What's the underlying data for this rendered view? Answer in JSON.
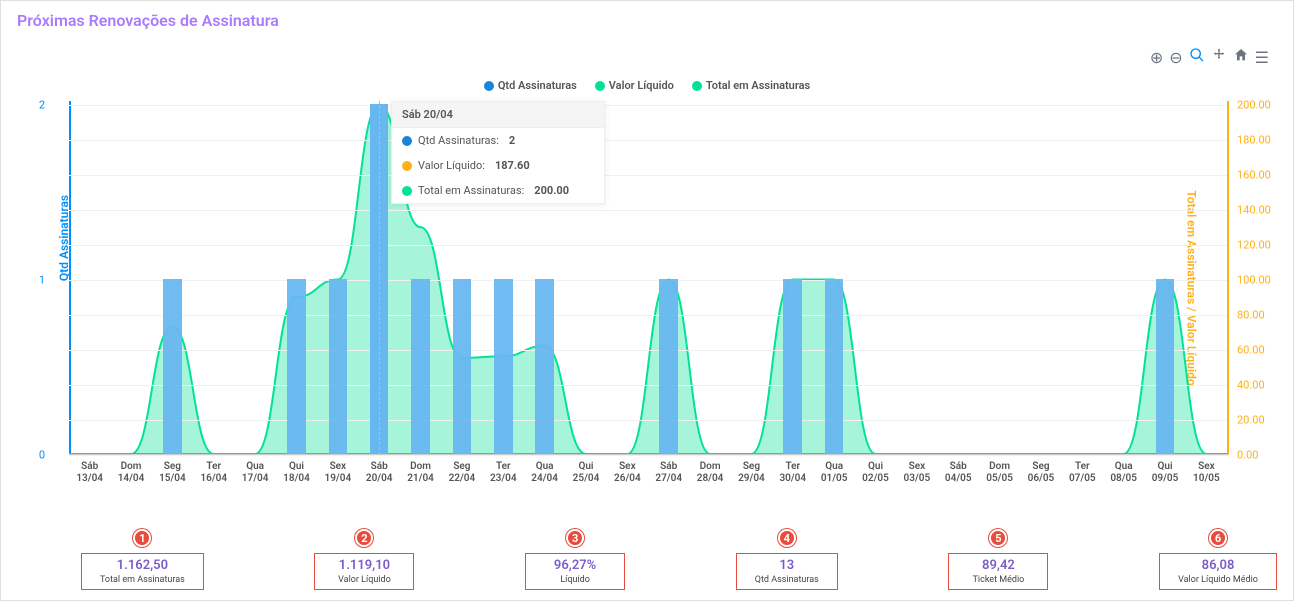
{
  "title": "Próximas Renovações de Assinatura",
  "chart": {
    "legend": [
      {
        "label": "Qtd Assinaturas",
        "color": "#1a84d9"
      },
      {
        "label": "Valor Líquido",
        "color": "#00e396"
      },
      {
        "label": "Total em Assinaturas",
        "color": "#00e396"
      }
    ],
    "y_left": {
      "title": "Qtd Assinaturas",
      "color": "#008ffb",
      "min": 0,
      "max": 2,
      "ticks": [
        0,
        1,
        2
      ]
    },
    "y_right": {
      "title": "Total em Assinaturas / Valor Líquido",
      "color": "#feb019",
      "min": 0,
      "max": 200,
      "ticks": [
        0.0,
        20.0,
        40.0,
        60.0,
        80.0,
        100.0,
        120.0,
        140.0,
        160.0,
        180.0,
        200.0
      ]
    },
    "categories": [
      {
        "day": "Sáb",
        "date": "13/04"
      },
      {
        "day": "Dom",
        "date": "14/04"
      },
      {
        "day": "Seg",
        "date": "15/04"
      },
      {
        "day": "Ter",
        "date": "16/04"
      },
      {
        "day": "Qua",
        "date": "17/04"
      },
      {
        "day": "Qui",
        "date": "18/04"
      },
      {
        "day": "Sex",
        "date": "19/04"
      },
      {
        "day": "Sáb",
        "date": "20/04"
      },
      {
        "day": "Dom",
        "date": "21/04"
      },
      {
        "day": "Seg",
        "date": "22/04"
      },
      {
        "day": "Ter",
        "date": "23/04"
      },
      {
        "day": "Qua",
        "date": "24/04"
      },
      {
        "day": "Qui",
        "date": "25/04"
      },
      {
        "day": "Sex",
        "date": "26/04"
      },
      {
        "day": "Sáb",
        "date": "27/04"
      },
      {
        "day": "Dom",
        "date": "28/04"
      },
      {
        "day": "Seg",
        "date": "29/04"
      },
      {
        "day": "Ter",
        "date": "30/04"
      },
      {
        "day": "Qua",
        "date": "01/05"
      },
      {
        "day": "Qui",
        "date": "02/05"
      },
      {
        "day": "Sex",
        "date": "03/05"
      },
      {
        "day": "Sáb",
        "date": "04/05"
      },
      {
        "day": "Dom",
        "date": "05/05"
      },
      {
        "day": "Seg",
        "date": "06/05"
      },
      {
        "day": "Ter",
        "date": "07/05"
      },
      {
        "day": "Qua",
        "date": "08/05"
      },
      {
        "day": "Qui",
        "date": "09/05"
      },
      {
        "day": "Sex",
        "date": "10/05"
      }
    ],
    "series_qtd": [
      0,
      0,
      1,
      0,
      0,
      1,
      1,
      2,
      1,
      1,
      1,
      1,
      0,
      0,
      1,
      0,
      0,
      1,
      1,
      0,
      0,
      0,
      0,
      0,
      0,
      0,
      1,
      0
    ],
    "series_total": [
      0,
      0,
      73,
      0,
      0,
      90,
      100,
      200,
      130,
      55,
      56,
      62,
      0,
      0,
      100,
      0,
      0,
      100,
      100,
      0,
      0,
      0,
      0,
      0,
      0,
      0,
      100,
      0
    ],
    "bar_color": "#67b7f1",
    "area_fill": "rgba(0,227,150,0.35)",
    "area_stroke": "#00e396",
    "grid_color": "#f0f0f0",
    "highlight_index": 7
  },
  "tooltip": {
    "title": "Sáb 20/04",
    "rows": [
      {
        "color": "#1a84d9",
        "label": "Qtd Assinaturas:",
        "value": "2"
      },
      {
        "color": "#feb019",
        "label": "Valor Líquido:",
        "value": "187.60"
      },
      {
        "color": "#00e396",
        "label": "Total em Assinaturas:",
        "value": "200.00"
      }
    ]
  },
  "summary": [
    {
      "badge": "1",
      "value": "1.162,50",
      "label": "Total em Assinaturas"
    },
    {
      "badge": "2",
      "value": "1.119,10",
      "label": "Valor Líquido"
    },
    {
      "badge": "3",
      "value": "96,27%",
      "label": "Líquido"
    },
    {
      "badge": "4",
      "value": "13",
      "label": "Qtd Assinaturas"
    },
    {
      "badge": "5",
      "value": "89,42",
      "label": "Ticket Médio"
    },
    {
      "badge": "6",
      "value": "86,08",
      "label": "Valor Líquido Médio"
    }
  ],
  "toolbar": {
    "zoom_in": "⊕",
    "zoom_out": "⊖",
    "zoom": "🔍",
    "pan": "✋",
    "home": "⌂",
    "menu": "☰"
  }
}
